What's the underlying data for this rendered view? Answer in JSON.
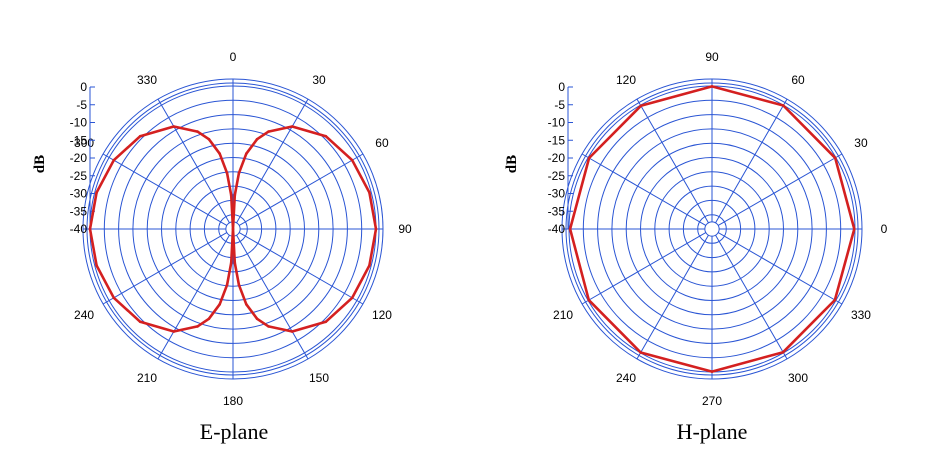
{
  "chart_data": [
    {
      "type": "polar-line",
      "xlabel": "E-plane",
      "ylabel": "dB",
      "r_ticks": [
        "0",
        "-5",
        "-10",
        "-15",
        "-20",
        "-25",
        "-30",
        "-35",
        "-40"
      ],
      "rlim": [
        -40,
        0
      ],
      "angle_ticks": [
        "0",
        "30",
        "60",
        "90",
        "120",
        "150",
        "180",
        "210",
        "240",
        "300",
        "330"
      ],
      "angle_zero": "top",
      "angle_direction": "clockwise",
      "grid": true,
      "series": [
        {
          "color": "#d42020",
          "theta_deg": [
            0,
            3,
            6,
            10,
            15,
            20,
            30,
            45,
            60,
            75,
            90,
            105,
            120,
            135,
            150,
            160,
            165,
            170,
            174,
            177,
            180,
            183,
            186,
            190,
            195,
            200,
            210,
            225,
            240,
            255,
            270,
            285,
            300,
            315,
            330,
            340,
            345,
            350,
            354,
            357
          ],
          "r_db": [
            -40,
            -30.5,
            -24.3,
            -18.6,
            -14.0,
            -11.0,
            -6.9,
            -3.3,
            -1.5,
            -0.5,
            0,
            -0.5,
            -1.5,
            -3.3,
            -6.9,
            -11.0,
            -14.0,
            -18.6,
            -24.3,
            -30.5,
            -40,
            -30.5,
            -24.3,
            -18.6,
            -14.0,
            -11.0,
            -6.9,
            -3.3,
            -1.5,
            -0.5,
            0,
            -0.5,
            -1.5,
            -3.3,
            -6.9,
            -11.0,
            -14.0,
            -18.6,
            -24.3,
            -30.5
          ]
        }
      ]
    },
    {
      "type": "polar-line",
      "xlabel": "H-plane",
      "ylabel": "dB",
      "r_ticks": [
        "0",
        "-5",
        "-10",
        "-15",
        "-20",
        "-25",
        "-30",
        "-35",
        "-40"
      ],
      "rlim": [
        -40,
        0
      ],
      "angle_ticks": [
        "0",
        "30",
        "60",
        "90",
        "120",
        "210",
        "240",
        "270",
        "300",
        "330"
      ],
      "angle_zero": "right",
      "angle_direction": "counterclockwise",
      "grid": true,
      "series": [
        {
          "color": "#d42020",
          "theta_deg": [
            0,
            30,
            60,
            90,
            120,
            150,
            180,
            210,
            240,
            270,
            300,
            330
          ],
          "r_db": [
            -0.2,
            -0.2,
            -0.1,
            -0.1,
            -0.2,
            -0.3,
            -0.3,
            -0.2,
            -0.1,
            -0.1,
            -0.2,
            -0.3
          ]
        }
      ]
    }
  ]
}
